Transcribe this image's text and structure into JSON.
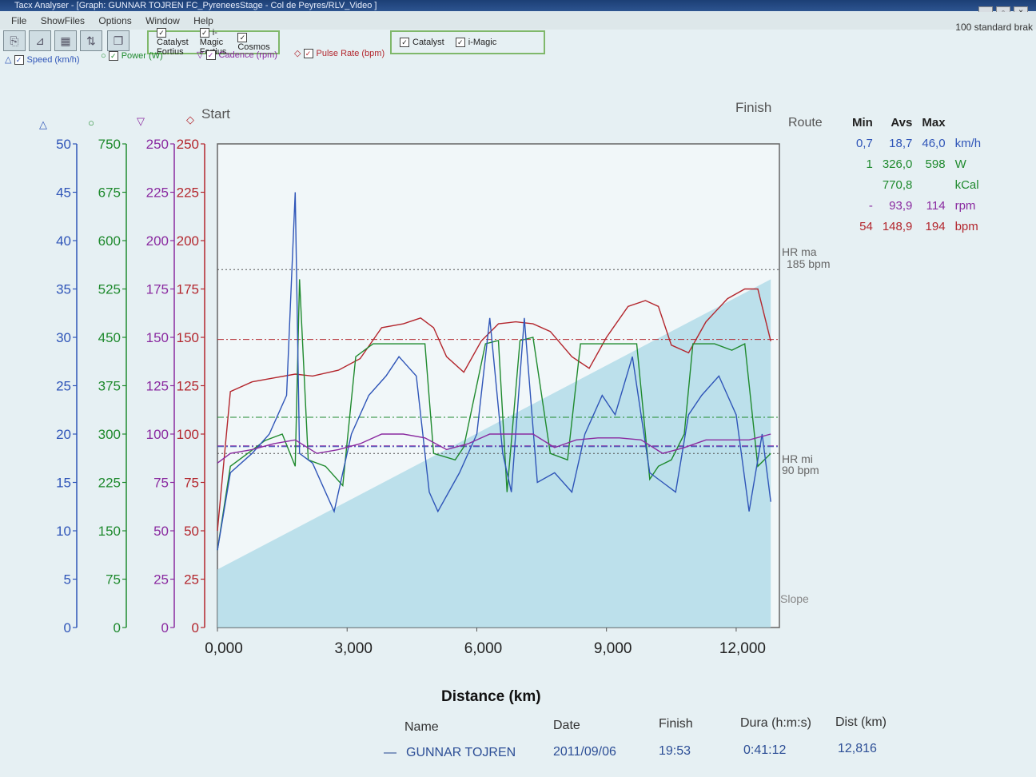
{
  "window": {
    "title": "Tacx Analyser - [Graph:  GUNNAR TOJREN  FC_PyreneesStage - Col de Peyres/RLV_Video ]",
    "brake_label": "100 standard brak"
  },
  "menu": [
    "File",
    "ShowFiles",
    "Options",
    "Window",
    "Help"
  ],
  "toolbar": {
    "group1": [
      "Catalyst Fortius",
      "i-Magic Fortius",
      "Cosmos"
    ],
    "group2": [
      "Catalyst",
      "i-Magic"
    ]
  },
  "series_toggles": [
    {
      "marker": "△",
      "label": "Speed (km/h)"
    },
    {
      "marker": "○",
      "label": "Power (W)"
    },
    {
      "marker": "▽",
      "label": "Cadence (rpm)"
    },
    {
      "marker": "◇",
      "label": "Pulse Rate (bpm)"
    }
  ],
  "colors": {
    "speed": "#2f55b8",
    "power": "#1f8a2e",
    "cadence": "#8a2aa0",
    "pulse": "#b3262d",
    "slope_fill": "#a9d8e6",
    "frame": "#666666"
  },
  "chart": {
    "start_label": "Start",
    "finish_label": "Finish",
    "route_label": "Route",
    "slope_label": "Slope",
    "hr_max_label": [
      "HR ma",
      "185 bpm"
    ],
    "hr_min_label": [
      "HR mi",
      "90 bpm"
    ],
    "axis_markers": [
      "△",
      "○",
      "▽",
      "◇"
    ],
    "x_title": "Distance (km)",
    "x_ticks": [
      "0,000",
      "3,000",
      "6,000",
      "9,000",
      "12,000"
    ],
    "speed_ticks": [
      "0",
      "5",
      "10",
      "15",
      "20",
      "25",
      "30",
      "35",
      "40",
      "45",
      "50"
    ],
    "power_ticks": [
      "0",
      "75",
      "150",
      "225",
      "300",
      "375",
      "450",
      "525",
      "600",
      "675",
      "750"
    ],
    "cadence_ticks": [
      "0",
      "25",
      "50",
      "75",
      "100",
      "125",
      "150",
      "175",
      "200",
      "225",
      "250"
    ],
    "pulse_ticks": [
      "0",
      "25",
      "50",
      "75",
      "100",
      "125",
      "150",
      "175",
      "200",
      "225",
      "250"
    ]
  },
  "chart_data": {
    "type": "line",
    "x_unit": "km",
    "xlim": [
      0,
      13
    ],
    "pulse_ylim": [
      0,
      250
    ],
    "hr_max": 185,
    "hr_min": 90,
    "series": [
      {
        "name": "Pulse Rate (bpm)",
        "axis": "pulse",
        "x": [
          0.0,
          0.3,
          0.8,
          1.3,
          1.8,
          2.2,
          2.8,
          3.3,
          3.8,
          4.3,
          4.7,
          5.0,
          5.3,
          5.7,
          6.1,
          6.5,
          6.9,
          7.3,
          7.7,
          8.2,
          8.6,
          9.0,
          9.5,
          9.9,
          10.2,
          10.5,
          10.9,
          11.3,
          11.8,
          12.2,
          12.5,
          12.8
        ],
        "y": [
          50,
          122,
          127,
          129,
          131,
          130,
          133,
          139,
          155,
          157,
          160,
          155,
          140,
          132,
          148,
          157,
          158,
          157,
          153,
          140,
          134,
          150,
          166,
          169,
          166,
          146,
          142,
          158,
          170,
          175,
          175,
          148
        ]
      },
      {
        "name": "Power (W)",
        "axis": "power",
        "x": [
          0.0,
          0.3,
          0.7,
          1.1,
          1.5,
          1.8,
          1.9,
          2.1,
          2.5,
          2.9,
          3.2,
          3.6,
          4.0,
          4.5,
          4.8,
          5.0,
          5.5,
          5.7,
          6.2,
          6.5,
          6.7,
          7.0,
          7.3,
          7.7,
          8.1,
          8.4,
          8.8,
          9.2,
          9.7,
          10.0,
          10.2,
          10.5,
          10.8,
          11.0,
          11.5,
          11.9,
          12.2,
          12.5,
          12.8
        ],
        "y": [
          120,
          250,
          270,
          290,
          300,
          250,
          540,
          260,
          250,
          220,
          420,
          440,
          440,
          440,
          440,
          270,
          260,
          280,
          440,
          445,
          210,
          445,
          450,
          270,
          260,
          440,
          440,
          440,
          440,
          230,
          250,
          260,
          300,
          440,
          440,
          430,
          440,
          250,
          270
        ]
      },
      {
        "name": "Speed (km/h)",
        "axis": "speed",
        "x": [
          0.0,
          0.3,
          0.8,
          1.2,
          1.6,
          1.8,
          1.9,
          2.2,
          2.7,
          3.1,
          3.5,
          3.9,
          4.2,
          4.6,
          4.9,
          5.1,
          5.6,
          6.0,
          6.3,
          6.6,
          6.8,
          7.1,
          7.4,
          7.8,
          8.2,
          8.5,
          8.9,
          9.2,
          9.6,
          10.0,
          10.3,
          10.6,
          10.9,
          11.2,
          11.6,
          12.0,
          12.3,
          12.6,
          12.8
        ],
        "y": [
          8,
          16,
          18,
          20,
          24,
          45,
          18,
          17,
          12,
          20,
          24,
          26,
          28,
          26,
          14,
          12,
          16,
          20,
          32,
          18,
          14,
          32,
          15,
          16,
          14,
          20,
          24,
          22,
          28,
          16,
          15,
          14,
          22,
          24,
          26,
          22,
          12,
          20,
          13
        ]
      },
      {
        "name": "Cadence (rpm)",
        "axis": "cadence",
        "x": [
          0.0,
          0.3,
          0.8,
          1.3,
          1.8,
          2.3,
          2.8,
          3.3,
          3.8,
          4.3,
          4.8,
          5.3,
          5.8,
          6.3,
          6.8,
          7.3,
          7.8,
          8.3,
          8.8,
          9.3,
          9.8,
          10.3,
          10.8,
          11.3,
          11.8,
          12.3,
          12.8
        ],
        "y": [
          85,
          90,
          92,
          95,
          97,
          90,
          92,
          95,
          100,
          100,
          98,
          92,
          95,
          100,
          100,
          100,
          93,
          97,
          98,
          98,
          97,
          90,
          93,
          97,
          97,
          97,
          100
        ]
      }
    ]
  },
  "stats": {
    "headers": [
      "Min",
      "Avs",
      "Max",
      ""
    ],
    "rows": [
      {
        "min": "0,7",
        "avg": "18,7",
        "max": "46,0",
        "unit": "km/h"
      },
      {
        "min": "1",
        "avg": "326,0",
        "max": "598",
        "unit": "W"
      },
      {
        "min": "",
        "avg": "770,8",
        "max": "",
        "unit": "kCal"
      },
      {
        "min": "-",
        "avg": "93,9",
        "max": "114",
        "unit": "rpm"
      },
      {
        "min": "54",
        "avg": "148,9",
        "max": "194",
        "unit": "bpm"
      }
    ]
  },
  "ride": {
    "headers": {
      "name": "Name",
      "date": "Date",
      "finish": "Finish",
      "duration": "Dura (h:m:s)",
      "distance": "Dist (km)"
    },
    "name": "GUNNAR TOJREN",
    "date": "2011/09/06",
    "finish": "19:53",
    "duration": "0:41:12",
    "distance": "12,816"
  }
}
